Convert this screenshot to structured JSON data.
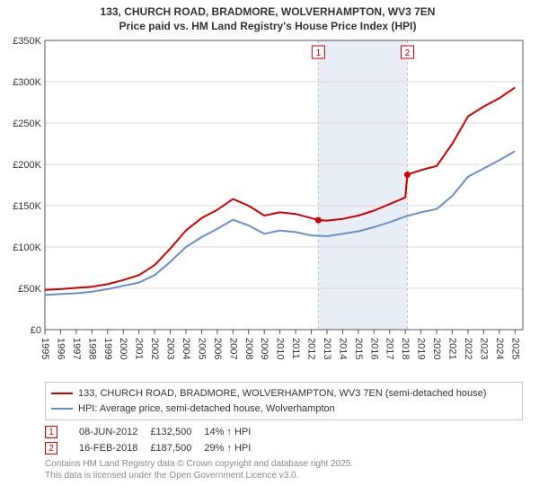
{
  "title_line1": "133, CHURCH ROAD, BRADMORE, WOLVERHAMPTON, WV3 7EN",
  "title_line2": "Price paid vs. HM Land Registry's House Price Index (HPI)",
  "chart": {
    "background_color": "#ffffff",
    "grid_color": "#d9d9d9",
    "axis_color": "#555555",
    "band_fill": "#e8eef6",
    "band_edge": "#bfbfbf",
    "band_edge_dash": "3,3",
    "x_start": 1995,
    "x_end": 2025.5,
    "xticks": [
      1995,
      1996,
      1997,
      1998,
      1999,
      2000,
      2001,
      2002,
      2003,
      2004,
      2005,
      2006,
      2007,
      2008,
      2009,
      2010,
      2011,
      2012,
      2013,
      2014,
      2015,
      2016,
      2017,
      2018,
      2019,
      2020,
      2021,
      2022,
      2023,
      2024,
      2025
    ],
    "ylim": [
      0,
      350000
    ],
    "yticks": [
      0,
      50000,
      100000,
      150000,
      200000,
      250000,
      300000,
      350000
    ],
    "ytick_labels": [
      "£0",
      "£50K",
      "£100K",
      "£150K",
      "£200K",
      "£250K",
      "£300K",
      "£350K"
    ],
    "series": {
      "subject": {
        "color": "#cc0000",
        "width": 2,
        "points": [
          [
            1995,
            48000
          ],
          [
            1996,
            49000
          ],
          [
            1997,
            50500
          ],
          [
            1998,
            52000
          ],
          [
            1999,
            55000
          ],
          [
            2000,
            60000
          ],
          [
            2001,
            66000
          ],
          [
            2002,
            78000
          ],
          [
            2003,
            98000
          ],
          [
            2004,
            120000
          ],
          [
            2005,
            135000
          ],
          [
            2006,
            145000
          ],
          [
            2007,
            158000
          ],
          [
            2008,
            150000
          ],
          [
            2009,
            138000
          ],
          [
            2010,
            142000
          ],
          [
            2011,
            140000
          ],
          [
            2012,
            135000
          ],
          [
            2012.45,
            132500
          ],
          [
            2013,
            132000
          ],
          [
            2014,
            134000
          ],
          [
            2015,
            138000
          ],
          [
            2016,
            144000
          ],
          [
            2017,
            152000
          ],
          [
            2018,
            160000
          ],
          [
            2018.13,
            187500
          ],
          [
            2019,
            193000
          ],
          [
            2020,
            198000
          ],
          [
            2021,
            225000
          ],
          [
            2022,
            258000
          ],
          [
            2023,
            270000
          ],
          [
            2024,
            280000
          ],
          [
            2025,
            293000
          ]
        ]
      },
      "hpi": {
        "color": "#6a8fc7",
        "width": 2,
        "points": [
          [
            1995,
            42000
          ],
          [
            1996,
            43000
          ],
          [
            1997,
            44000
          ],
          [
            1998,
            46000
          ],
          [
            1999,
            49000
          ],
          [
            2000,
            53000
          ],
          [
            2001,
            57000
          ],
          [
            2002,
            66000
          ],
          [
            2003,
            82000
          ],
          [
            2004,
            100000
          ],
          [
            2005,
            112000
          ],
          [
            2006,
            122000
          ],
          [
            2007,
            133000
          ],
          [
            2008,
            126000
          ],
          [
            2009,
            116000
          ],
          [
            2010,
            120000
          ],
          [
            2011,
            118000
          ],
          [
            2012,
            114000
          ],
          [
            2013,
            113000
          ],
          [
            2014,
            116000
          ],
          [
            2015,
            119000
          ],
          [
            2016,
            124000
          ],
          [
            2017,
            130000
          ],
          [
            2018,
            137000
          ],
          [
            2019,
            142000
          ],
          [
            2020,
            146000
          ],
          [
            2021,
            162000
          ],
          [
            2022,
            185000
          ],
          [
            2023,
            195000
          ],
          [
            2024,
            205000
          ],
          [
            2025,
            216000
          ]
        ]
      }
    },
    "marker_points": [
      {
        "x": 2012.45,
        "y": 132500,
        "label": "1"
      },
      {
        "x": 2018.13,
        "y": 187500,
        "label": "2"
      }
    ]
  },
  "legend": {
    "s1": "133, CHURCH ROAD, BRADMORE, WOLVERHAMPTON, WV3 7EN (semi-detached house)",
    "s2": "HPI: Average price, semi-detached house, Wolverhampton"
  },
  "transactions": [
    {
      "n": "1",
      "date": "08-JUN-2012",
      "price": "£132,500",
      "delta": "14% ↑ HPI"
    },
    {
      "n": "2",
      "date": "16-FEB-2018",
      "price": "£187,500",
      "delta": "29% ↑ HPI"
    }
  ],
  "footer1": "Contains HM Land Registry data © Crown copyright and database right 2025.",
  "footer2": "This data is licensed under the Open Government Licence v3.0."
}
